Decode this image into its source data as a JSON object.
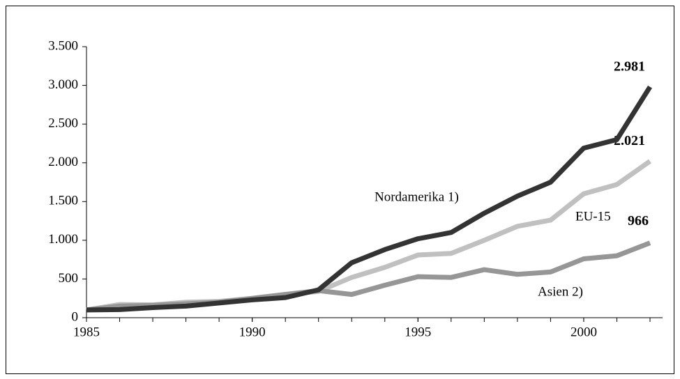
{
  "chart_data": {
    "type": "line",
    "x": [
      1985,
      1986,
      1987,
      1988,
      1989,
      1990,
      1991,
      1992,
      1993,
      1994,
      1995,
      1996,
      1997,
      1998,
      1999,
      2000,
      2001,
      2002
    ],
    "series": [
      {
        "name": "EU-15",
        "color": "#c0c0c0",
        "values": [
          100,
          170,
          165,
          200,
          210,
          250,
          300,
          340,
          520,
          650,
          810,
          830,
          1000,
          1180,
          1260,
          1600,
          1720,
          2021
        ],
        "value_labels": [
          null,
          null,
          null,
          null,
          null,
          null,
          null,
          null,
          null,
          null,
          null,
          null,
          null,
          null,
          null,
          null,
          null,
          "2.021"
        ]
      },
      {
        "name": "Asien 2)",
        "color": "#969696",
        "values": [
          100,
          150,
          160,
          180,
          200,
          250,
          300,
          350,
          300,
          420,
          530,
          520,
          620,
          560,
          590,
          760,
          800,
          966
        ],
        "value_labels": [
          null,
          null,
          null,
          null,
          null,
          null,
          null,
          null,
          null,
          null,
          null,
          null,
          null,
          null,
          null,
          null,
          null,
          "966"
        ]
      },
      {
        "name": "Nordamerika 1)",
        "color": "#333333",
        "values": [
          100,
          105,
          130,
          150,
          190,
          230,
          260,
          360,
          710,
          880,
          1020,
          1100,
          1350,
          1570,
          1750,
          2190,
          2300,
          2981
        ],
        "value_labels": [
          null,
          null,
          null,
          null,
          null,
          null,
          null,
          null,
          null,
          null,
          null,
          null,
          null,
          null,
          null,
          null,
          null,
          "2.981"
        ]
      }
    ],
    "xlim": [
      1985,
      2002
    ],
    "xticks": [
      1985,
      1990,
      1995,
      2000
    ],
    "ylim": [
      0,
      3500
    ],
    "yticks": [
      0,
      {
        "value": 500,
        "label": "500"
      },
      {
        "value": 1000,
        "label": "1.000"
      },
      {
        "value": 1500,
        "label": "1.500"
      },
      {
        "value": 2000,
        "label": "2.000"
      },
      {
        "value": 2500,
        "label": "2.500"
      },
      {
        "value": 3000,
        "label": "3.000"
      },
      {
        "value": 3500,
        "label": "3.500"
      }
    ]
  }
}
